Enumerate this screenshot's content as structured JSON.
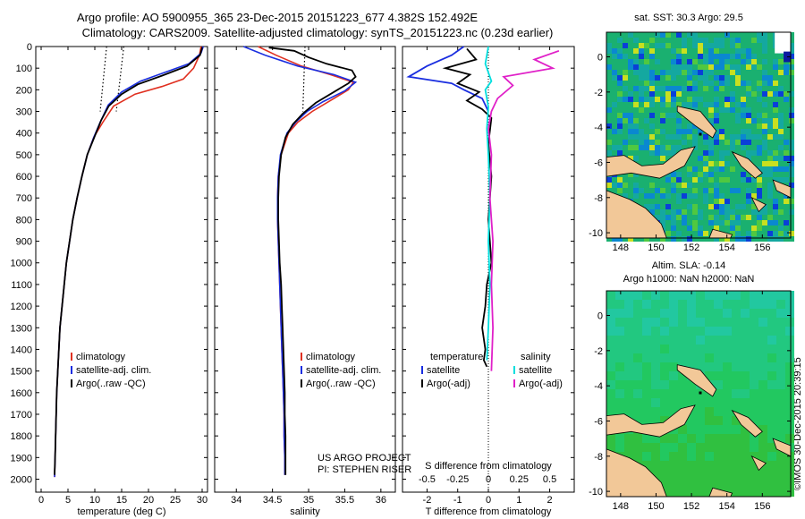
{
  "header": {
    "line1": "Argo profile: AO 5900955_365 23-Dec-2015 20151223_677 4.382S 152.492E",
    "line2": "Climatology: CARS2009. Satellite-adjusted climatology: synTS_20151223.nc (0.23d earlier)"
  },
  "depth_ticks": [
    "0",
    "100",
    "200",
    "300",
    "400",
    "500",
    "600",
    "700",
    "800",
    "900",
    "1000",
    "1100",
    "1200",
    "1300",
    "1400",
    "1500",
    "1600",
    "1700",
    "1800",
    "1900",
    "2000"
  ],
  "chart_data": [
    {
      "type": "line",
      "name": "temperature",
      "xlabel": "temperature (deg C)",
      "ylabel": "",
      "xlim": [
        -1,
        31
      ],
      "ylim": [
        2060,
        0
      ],
      "xticks": [
        "0",
        "5",
        "10",
        "15",
        "20",
        "25",
        "30"
      ],
      "xtick_values": [
        0,
        5,
        10,
        15,
        20,
        25,
        30
      ],
      "legend": [
        "climatology",
        "satellite-adj. clim.",
        "Argo(..raw -QC)"
      ],
      "dotted": [
        {
          "name": "left-ref",
          "points": [
            [
              12.2,
              0
            ],
            [
              11.0,
              300
            ]
          ]
        },
        {
          "name": "right-ref",
          "points": [
            [
              15.4,
              0
            ],
            [
              14.0,
              300
            ]
          ]
        }
      ],
      "series": [
        {
          "name": "climatology",
          "color": "#e03020",
          "points": [
            [
              29.8,
              0
            ],
            [
              29.5,
              40
            ],
            [
              28.4,
              100
            ],
            [
              26.5,
              150
            ],
            [
              22.5,
              185
            ],
            [
              17.5,
              220
            ],
            [
              13.5,
              275
            ],
            [
              11.5,
              350
            ],
            [
              9.8,
              420
            ],
            [
              8.6,
              500
            ],
            [
              7.6,
              600
            ],
            [
              6.7,
              700
            ],
            [
              5.9,
              800
            ],
            [
              5.3,
              900
            ],
            [
              4.7,
              1000
            ],
            [
              4.3,
              1100
            ],
            [
              3.9,
              1200
            ],
            [
              3.5,
              1300
            ],
            [
              3.3,
              1400
            ],
            [
              3.1,
              1500
            ],
            [
              2.9,
              1600
            ],
            [
              2.8,
              1700
            ],
            [
              2.7,
              1800
            ],
            [
              2.6,
              1900
            ],
            [
              2.5,
              1990
            ]
          ]
        },
        {
          "name": "satellite-adj. clim.",
          "color": "#1a2ee0",
          "points": [
            [
              30.2,
              0
            ],
            [
              29.8,
              30
            ],
            [
              27.5,
              80
            ],
            [
              23.0,
              120
            ],
            [
              18.5,
              160
            ],
            [
              15.0,
              210
            ],
            [
              12.5,
              270
            ],
            [
              11.0,
              350
            ],
            [
              9.8,
              420
            ],
            [
              8.6,
              500
            ],
            [
              7.6,
              600
            ],
            [
              6.7,
              700
            ],
            [
              5.9,
              800
            ],
            [
              5.3,
              900
            ],
            [
              4.7,
              1000
            ],
            [
              4.3,
              1100
            ],
            [
              3.9,
              1200
            ],
            [
              3.5,
              1300
            ],
            [
              3.3,
              1400
            ],
            [
              3.1,
              1500
            ],
            [
              2.9,
              1600
            ],
            [
              2.8,
              1700
            ],
            [
              2.7,
              1800
            ],
            [
              2.6,
              1900
            ],
            [
              2.5,
              1990
            ]
          ]
        },
        {
          "name": "Argo(..raw -QC)",
          "color": "#000000",
          "points": [
            [
              30.0,
              5
            ],
            [
              29.6,
              40
            ],
            [
              27.2,
              90
            ],
            [
              22.5,
              135
            ],
            [
              18.0,
              175
            ],
            [
              15.0,
              220
            ],
            [
              12.6,
              275
            ],
            [
              11.2,
              340
            ],
            [
              9.9,
              420
            ],
            [
              8.6,
              500
            ],
            [
              7.6,
              600
            ],
            [
              6.7,
              700
            ],
            [
              5.9,
              800
            ],
            [
              5.3,
              900
            ],
            [
              4.7,
              1000
            ],
            [
              4.3,
              1100
            ],
            [
              3.9,
              1200
            ],
            [
              3.5,
              1300
            ],
            [
              3.3,
              1400
            ],
            [
              3.1,
              1500
            ],
            [
              2.9,
              1600
            ],
            [
              2.8,
              1700
            ],
            [
              2.7,
              1800
            ],
            [
              2.6,
              1900
            ],
            [
              2.5,
              1980
            ]
          ]
        }
      ]
    },
    {
      "type": "line",
      "name": "salinity",
      "xlabel": "salinity",
      "xlim": [
        33.7,
        36.2
      ],
      "ylim": [
        2060,
        0
      ],
      "xticks": [
        "34",
        "34.5",
        "35",
        "35.5",
        "36"
      ],
      "xtick_values": [
        34,
        34.5,
        35,
        35.5,
        36
      ],
      "legend": [
        "climatology",
        "satellite-adj. clim.",
        "Argo(..raw -QC)"
      ],
      "project_text": [
        "US ARGO PROJECT",
        "PI: STEPHEN RISER"
      ],
      "dotted": [
        {
          "name": "sal-ref",
          "points": [
            [
              34.95,
              0
            ],
            [
              34.92,
              300
            ]
          ]
        }
      ],
      "series": [
        {
          "name": "climatology",
          "color": "#e03020",
          "points": [
            [
              34.3,
              0
            ],
            [
              34.55,
              40
            ],
            [
              34.9,
              90
            ],
            [
              35.3,
              130
            ],
            [
              35.62,
              165
            ],
            [
              35.55,
              200
            ],
            [
              35.3,
              250
            ],
            [
              35.05,
              300
            ],
            [
              34.85,
              350
            ],
            [
              34.72,
              400
            ],
            [
              34.62,
              500
            ],
            [
              34.58,
              600
            ],
            [
              34.57,
              700
            ],
            [
              34.57,
              800
            ],
            [
              34.58,
              900
            ],
            [
              34.59,
              1000
            ],
            [
              34.6,
              1100
            ],
            [
              34.61,
              1200
            ],
            [
              34.62,
              1300
            ],
            [
              34.63,
              1400
            ],
            [
              34.64,
              1500
            ],
            [
              34.65,
              1600
            ],
            [
              34.66,
              1700
            ],
            [
              34.66,
              1800
            ],
            [
              34.67,
              1900
            ],
            [
              34.67,
              1980
            ]
          ]
        },
        {
          "name": "satellite-adj. clim.",
          "color": "#1a2ee0",
          "points": [
            [
              34.1,
              0
            ],
            [
              34.4,
              40
            ],
            [
              34.85,
              90
            ],
            [
              35.35,
              130
            ],
            [
              35.65,
              165
            ],
            [
              35.5,
              205
            ],
            [
              35.2,
              255
            ],
            [
              34.98,
              300
            ],
            [
              34.82,
              350
            ],
            [
              34.7,
              400
            ],
            [
              34.61,
              500
            ],
            [
              34.58,
              600
            ],
            [
              34.57,
              700
            ],
            [
              34.57,
              800
            ],
            [
              34.58,
              900
            ],
            [
              34.59,
              1000
            ],
            [
              34.6,
              1100
            ],
            [
              34.61,
              1200
            ],
            [
              34.62,
              1300
            ],
            [
              34.63,
              1400
            ],
            [
              34.64,
              1500
            ],
            [
              34.65,
              1600
            ],
            [
              34.66,
              1700
            ],
            [
              34.66,
              1800
            ],
            [
              34.67,
              1900
            ],
            [
              34.67,
              1980
            ]
          ]
        },
        {
          "name": "Argo(..raw -QC)",
          "color": "#000000",
          "points": [
            [
              34.45,
              5
            ],
            [
              34.8,
              20
            ],
            [
              35.0,
              50
            ],
            [
              35.25,
              80
            ],
            [
              35.6,
              110
            ],
            [
              35.65,
              140
            ],
            [
              35.55,
              170
            ],
            [
              35.35,
              210
            ],
            [
              35.1,
              260
            ],
            [
              34.92,
              310
            ],
            [
              34.78,
              360
            ],
            [
              34.68,
              420
            ],
            [
              34.62,
              500
            ],
            [
              34.59,
              600
            ],
            [
              34.58,
              700
            ],
            [
              34.58,
              800
            ],
            [
              34.59,
              900
            ],
            [
              34.6,
              1000
            ],
            [
              34.62,
              1100
            ],
            [
              34.63,
              1200
            ],
            [
              34.64,
              1300
            ],
            [
              34.65,
              1400
            ],
            [
              34.66,
              1500
            ],
            [
              34.67,
              1600
            ],
            [
              34.67,
              1700
            ],
            [
              34.68,
              1800
            ],
            [
              34.68,
              1900
            ],
            [
              34.68,
              1980
            ]
          ]
        }
      ]
    },
    {
      "type": "line",
      "name": "difference",
      "xlabel": "T difference from climatology",
      "xlabel_top": "S difference from climatology",
      "xlim": [
        -2.8,
        2.8
      ],
      "ylim": [
        2060,
        0
      ],
      "xticks": [
        "-2",
        "-1",
        "0",
        "1",
        "2"
      ],
      "xtick_values": [
        -2,
        -1,
        0,
        1,
        2
      ],
      "s_ticks": [
        "-0.5",
        "-0.25",
        "0",
        "0.25",
        "0.5"
      ],
      "s_tick_values": [
        -0.5,
        -0.25,
        0,
        0.25,
        0.5
      ],
      "legend_temp": [
        "temperature",
        "satellite",
        "Argo(-adj)"
      ],
      "legend_sal": [
        "salinity",
        "satellite",
        "Argo(-adj)"
      ],
      "series": [
        {
          "name": "temp-satellite",
          "color": "#1a2ee0",
          "points": [
            [
              -0.8,
              0
            ],
            [
              -1.2,
              40
            ],
            [
              -2.0,
              90
            ],
            [
              -2.6,
              140
            ],
            [
              -1.2,
              170
            ],
            [
              -0.8,
              200
            ],
            [
              -0.2,
              240
            ],
            [
              0.0,
              300
            ]
          ]
        },
        {
          "name": "temp-argo",
          "color": "#000000",
          "points": [
            [
              -0.7,
              10
            ],
            [
              -0.4,
              60
            ],
            [
              -1.4,
              100
            ],
            [
              -0.6,
              130
            ],
            [
              -1.0,
              170
            ],
            [
              -0.3,
              210
            ],
            [
              -0.7,
              250
            ],
            [
              -0.2,
              290
            ],
            [
              0.1,
              330
            ],
            [
              0.0,
              450
            ],
            [
              0.1,
              600
            ],
            [
              0.0,
              800
            ],
            [
              0.1,
              1000
            ],
            [
              -0.05,
              1100
            ],
            [
              -0.1,
              1200
            ],
            [
              -0.2,
              1300
            ],
            [
              -0.1,
              1400
            ],
            [
              -0.15,
              1450
            ],
            [
              -0.05,
              1480
            ]
          ]
        },
        {
          "name": "sal-satellite",
          "color": "#00dede",
          "points": [
            [
              0.0,
              0
            ],
            [
              -0.1,
              80
            ],
            [
              0.1,
              160
            ],
            [
              -0.1,
              200
            ],
            [
              0.0,
              280
            ],
            [
              -0.05,
              380
            ],
            [
              0.0,
              500
            ],
            [
              0.05,
              700
            ],
            [
              0.0,
              900
            ],
            [
              0.05,
              1100
            ],
            [
              0.0,
              1300
            ],
            [
              -0.05,
              1450
            ]
          ]
        },
        {
          "name": "sal-argo",
          "color": "#e020c8",
          "points": [
            [
              2.3,
              20
            ],
            [
              1.5,
              60
            ],
            [
              2.1,
              100
            ],
            [
              0.5,
              140
            ],
            [
              0.8,
              180
            ],
            [
              0.3,
              240
            ],
            [
              0.1,
              300
            ],
            [
              0.0,
              380
            ],
            [
              0.1,
              500
            ],
            [
              0.05,
              700
            ],
            [
              0.15,
              900
            ],
            [
              0.1,
              1100
            ],
            [
              0.15,
              1300
            ],
            [
              0.1,
              1500
            ]
          ]
        }
      ]
    },
    {
      "type": "heatmap",
      "name": "sst-map",
      "title": "sat. SST: 30.3 Argo: 29.5",
      "xticks": [
        "148",
        "150",
        "152",
        "154",
        "156"
      ],
      "yticks": [
        "0",
        "-2",
        "-4",
        "-6",
        "-8",
        "-10"
      ],
      "xlim": [
        147.2,
        157.6
      ],
      "ylim": [
        -10.3,
        1.4
      ],
      "marker": [
        152.5,
        -4.4
      ]
    },
    {
      "type": "heatmap",
      "name": "sla-map",
      "title_line1": "Altim. SLA: -0.14",
      "title_line2": "Argo h1000: NaN h2000: NaN",
      "xticks": [
        "148",
        "150",
        "152",
        "154",
        "156"
      ],
      "yticks": [
        "0",
        "-2",
        "-4",
        "-6",
        "-8",
        "-10"
      ],
      "xlim": [
        147.2,
        157.6
      ],
      "ylim": [
        -10.3,
        1.4
      ],
      "marker": [
        152.5,
        -4.4
      ]
    }
  ],
  "credit": "©IMOS 30-Dec-2015 20:39:15",
  "colors": {
    "axis": "#000000",
    "sst_base": "#1ab070",
    "sla_base": "#22c860",
    "land": "#f2c898"
  }
}
